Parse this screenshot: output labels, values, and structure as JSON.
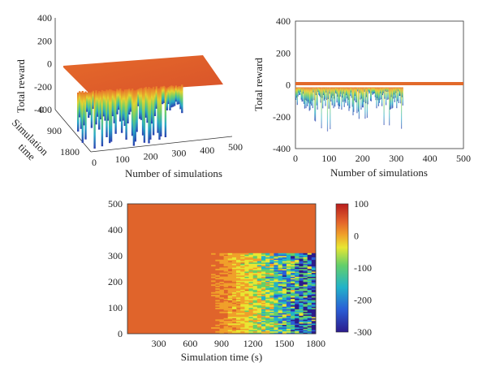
{
  "chart_data": [
    {
      "type": "surface3d",
      "x_label": "Number of simulations",
      "y_label_line1": "Simulation",
      "y_label_line2": "time",
      "z_label": "Total reward",
      "x_ticks": [
        0,
        100,
        200,
        300,
        400,
        500
      ],
      "y_ticks": [
        0,
        900,
        1800
      ],
      "z_ticks": [
        400,
        200,
        0,
        -200,
        -400
      ],
      "xlim": [
        0,
        500
      ],
      "ylim": [
        0,
        1800
      ],
      "zlim": [
        -400,
        400
      ],
      "plateau_reward": 0,
      "dip_region_simulations": [
        0,
        320
      ],
      "min_reward": -350
    },
    {
      "type": "area",
      "x_label": "Number of simulations",
      "y_label": "Total reward",
      "x_ticks": [
        0,
        100,
        200,
        300,
        400,
        500
      ],
      "y_ticks": [
        400,
        200,
        0,
        -200,
        -400
      ],
      "xlim": [
        0,
        500
      ],
      "ylim": [
        -400,
        400
      ],
      "plateau_reward": 0,
      "dip_region_simulations": [
        0,
        320
      ],
      "min_reward": -350
    },
    {
      "type": "heatmap",
      "x_label": "Simulation time (s)",
      "y_label": "",
      "x_ticks": [
        300,
        600,
        900,
        1200,
        1500,
        1800
      ],
      "y_ticks": [
        0,
        100,
        200,
        300,
        400,
        500
      ],
      "xlim": [
        0,
        1800
      ],
      "ylim": [
        0,
        500
      ],
      "colorbar_ticks": [
        100,
        0,
        -100,
        -200,
        -300
      ],
      "colorbar_range": [
        -300,
        100
      ],
      "onset_time_s": 800,
      "active_rows": [
        0,
        310
      ],
      "colormap": [
        "#2c1b8c",
        "#2a5fd6",
        "#21b3c9",
        "#63cf6b",
        "#e8e632",
        "#f0a02a",
        "#e3632b",
        "#b81d1d"
      ]
    }
  ]
}
